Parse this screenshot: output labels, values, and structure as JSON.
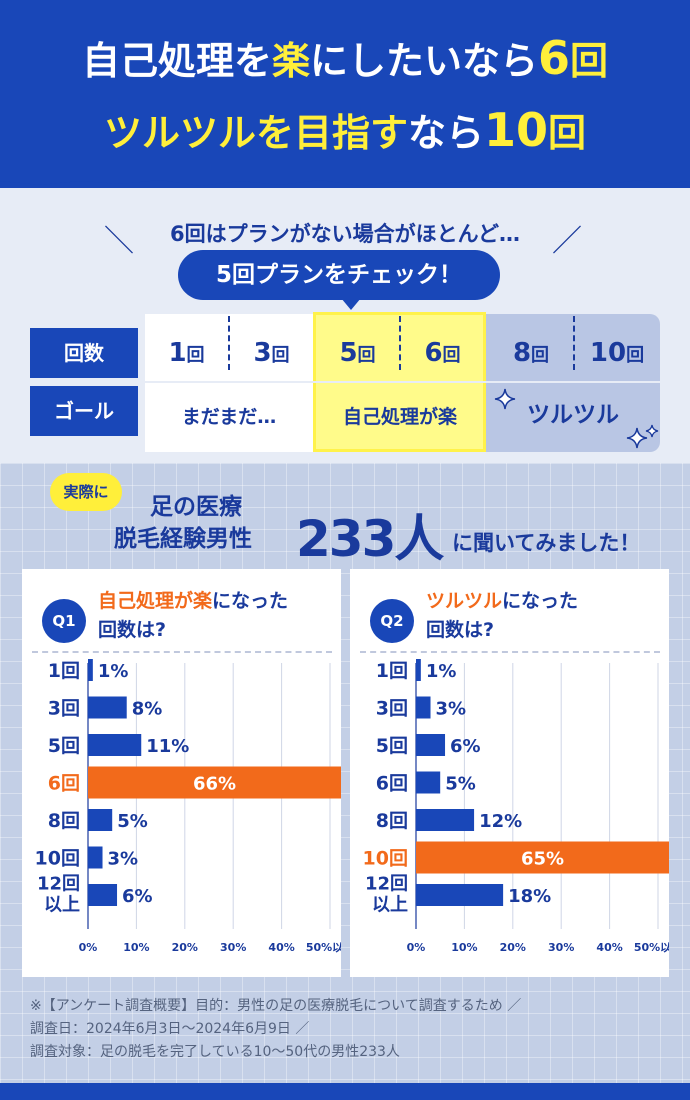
{
  "header": {
    "line1": {
      "a": "自己処理を",
      "b": "楽",
      "c": "にしたいなら",
      "d": "6",
      "e": "回"
    },
    "line2": {
      "a": "ツルツルを",
      "b": "目指す",
      "c": "なら",
      "d": "10",
      "e": "回"
    }
  },
  "plan": {
    "note": "6回はプランがない場合がほとんど…",
    "bubble": "5回プランをチェック！",
    "row1_label": "回数",
    "row2_label": "ゴール",
    "counts": [
      {
        "n": "1",
        "k": "回"
      },
      {
        "n": "3",
        "k": "回"
      },
      {
        "n": "5",
        "k": "回"
      },
      {
        "n": "6",
        "k": "回"
      },
      {
        "n": "8",
        "k": "回"
      },
      {
        "n": "10",
        "k": "回"
      }
    ],
    "goals": [
      "まだまだ…",
      "自己処理が楽",
      "ツルツル"
    ]
  },
  "survey": {
    "tag": "実際に",
    "title_a": "足の医療",
    "title_b": "脱毛経験男性",
    "title_num": "233人",
    "title_c": "に聞いてみました！"
  },
  "q1": {
    "badge": "Q1",
    "hl": "自己処理が楽",
    "rest": "になった",
    "line2": "回数は?"
  },
  "q2": {
    "badge": "Q2",
    "hl": "ツルツル",
    "rest": "になった",
    "line2": "回数は?"
  },
  "chart_data": [
    {
      "type": "bar",
      "orientation": "horizontal",
      "categories": [
        "1回",
        "3回",
        "5回",
        "6回",
        "8回",
        "10回",
        "12回 以上"
      ],
      "values": [
        1,
        8,
        11,
        66,
        5,
        3,
        6
      ],
      "value_labels": [
        "1%",
        "8%",
        "11%",
        "66%",
        "5%",
        "3%",
        "6%"
      ],
      "highlight_index": 3,
      "xticks": [
        "0%",
        "10%",
        "20%",
        "30%",
        "40%",
        "50%以上"
      ],
      "xlim": [
        0,
        50
      ],
      "colors": {
        "bar": "#1947b8",
        "highlight": "#f26a1b"
      }
    },
    {
      "type": "bar",
      "orientation": "horizontal",
      "categories": [
        "1回",
        "3回",
        "5回",
        "6回",
        "8回",
        "10回",
        "12回 以上"
      ],
      "values": [
        1,
        3,
        6,
        5,
        12,
        65,
        18
      ],
      "value_labels": [
        "1%",
        "3%",
        "6%",
        "5%",
        "12%",
        "65%",
        "18%"
      ],
      "highlight_index": 5,
      "xticks": [
        "0%",
        "10%",
        "20%",
        "30%",
        "40%",
        "50%以上"
      ],
      "xlim": [
        0,
        50
      ],
      "colors": {
        "bar": "#1947b8",
        "highlight": "#f26a1b"
      }
    }
  ],
  "footnote": {
    "line1": "※【アンケート調査概要】目的：男性の足の医療脱毛について調査するため ／",
    "line2": "調査日：2024年6月3日～2024年6月9日 ／",
    "line3": "調査対象：足の脱毛を完了している10～50代の男性233人"
  }
}
